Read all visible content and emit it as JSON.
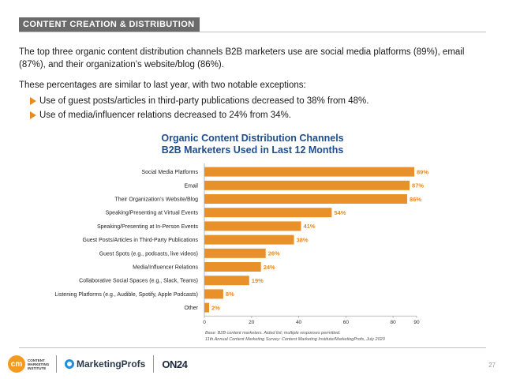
{
  "header": {
    "section_tag": "CONTENT CREATION & DISTRIBUTION"
  },
  "intro": {
    "paragraph1": "The top three organic content distribution channels B2B marketers use are social media platforms (89%), email (87%), and their organization’s website/blog (86%).",
    "paragraph2": "These percentages are similar to last year, with two notable exceptions:",
    "bullets": [
      "Use of guest posts/articles in third-party publications decreased to 38% from 48%.",
      "Use of media/influencer relations decreased to 24% from 34%."
    ]
  },
  "chart_data": {
    "type": "bar",
    "orientation": "horizontal",
    "title": "Organic Content Distribution Channels",
    "subtitle": "B2B Marketers Used in Last 12 Months",
    "categories": [
      "Social Media Platforms",
      "Email",
      "Their Organization’s Website/Blog",
      "Speaking/Presenting at Virtual Events",
      "Speaking/Presenting at In-Person Events",
      "Guest Posts/Articles in Third-Party Publications",
      "Guest Spots (e.g., podcasts, live videos)",
      "Media/Influencer Relations",
      "Collaborative Social Spaces (e.g., Slack, Teams)",
      "Listening Platforms (e.g., Audible, Spotify, Apple Podcasts)",
      "Other"
    ],
    "values": [
      89,
      87,
      86,
      54,
      41,
      38,
      26,
      24,
      19,
      8,
      2
    ],
    "value_labels": [
      "89%",
      "87%",
      "86%",
      "54%",
      "41%",
      "38%",
      "26%",
      "24%",
      "19%",
      "8%",
      "2%"
    ],
    "xlim": [
      0,
      90
    ],
    "xticks": [
      0,
      20,
      40,
      60,
      80,
      90
    ],
    "xtick_labels": [
      "0",
      "20",
      "40",
      "60",
      "80",
      "90"
    ],
    "grid": false,
    "bar_color": "#E8912A",
    "value_label_color": "#E58B22",
    "title_color": "#1F4E8C"
  },
  "notes": {
    "base": "Base: B2B content marketers. Aided list; multiple responses permitted.",
    "source": "11th Annual Content Marketing Survey: Content Marketing Institute/MarketingProfs, July 2020"
  },
  "footer": {
    "cmi_mark": "cm",
    "cmi_text": "CONTENT MARKETING INSTITUTE",
    "marketingprofs": "MarketingProfs",
    "on24": "ON24",
    "page_number": "27"
  }
}
